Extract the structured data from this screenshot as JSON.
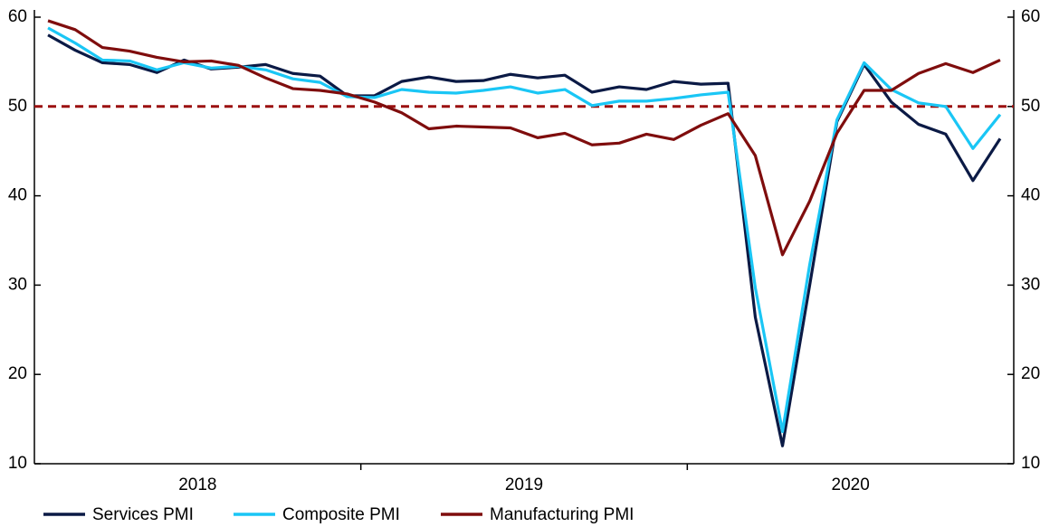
{
  "chart_data": {
    "type": "line",
    "categories": [
      null,
      null,
      null,
      null,
      null,
      null,
      null,
      null,
      null,
      null,
      null,
      null,
      null,
      null,
      null,
      null,
      null,
      null,
      null,
      null,
      null,
      null,
      null,
      null,
      null,
      null,
      null,
      null,
      null,
      null,
      null,
      null,
      null,
      null,
      null,
      null
    ],
    "year_labels": [
      "2018",
      "2019",
      "2020"
    ],
    "series": [
      {
        "name": "Services PMI",
        "color": "#0b1a45",
        "values": [
          58.0,
          56.3,
          54.9,
          54.7,
          53.8,
          55.2,
          54.2,
          54.4,
          54.7,
          53.7,
          53.4,
          51.2,
          51.2,
          52.8,
          53.3,
          52.8,
          52.9,
          53.6,
          53.2,
          53.5,
          51.6,
          52.2,
          51.9,
          52.8,
          52.5,
          52.6,
          26.4,
          12.0,
          30.0,
          48.3,
          54.7,
          50.5,
          48.0,
          46.9,
          41.7,
          46.4
        ]
      },
      {
        "name": "Composite PMI",
        "color": "#1ac6f5",
        "values": [
          58.8,
          57.1,
          55.2,
          55.1,
          54.1,
          54.9,
          54.3,
          54.5,
          54.1,
          53.1,
          52.7,
          51.1,
          51.0,
          51.9,
          51.6,
          51.5,
          51.8,
          52.2,
          51.5,
          51.9,
          50.1,
          50.6,
          50.6,
          50.9,
          51.3,
          51.6,
          29.7,
          13.6,
          32.3,
          48.5,
          54.9,
          51.9,
          50.4,
          50.0,
          45.3,
          49.1
        ]
      },
      {
        "name": "Manufacturing PMI",
        "color": "#7f0d0d",
        "values": [
          59.6,
          58.6,
          56.6,
          56.2,
          55.5,
          55.0,
          55.1,
          54.6,
          53.2,
          52.0,
          51.8,
          51.4,
          50.5,
          49.3,
          47.5,
          47.8,
          47.7,
          47.6,
          46.5,
          47.0,
          45.7,
          45.9,
          46.9,
          46.3,
          47.9,
          49.2,
          44.5,
          33.4,
          39.4,
          47.0,
          51.8,
          51.8,
          53.7,
          54.8,
          53.8,
          55.2
        ]
      }
    ],
    "reference_line": 50,
    "reference_color": "#9b1010",
    "ylim": [
      10,
      60
    ],
    "yticks": [
      10,
      20,
      30,
      40,
      50,
      60
    ],
    "y2lim": [
      10,
      60
    ],
    "y2ticks": [
      10,
      20,
      30,
      40,
      50,
      60
    ]
  }
}
